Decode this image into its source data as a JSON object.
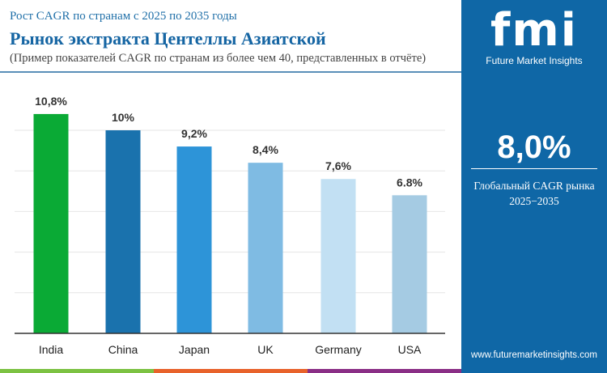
{
  "header": {
    "subtitle": "Рост CAGR по странам с 2025 по 2035 годы",
    "title": "Рынок экстракта Центеллы Азиатской",
    "note": "(Пример показателей CAGR по странам из более чем 40, представленных в отчёте)"
  },
  "sidebar": {
    "logo": "fmi",
    "brand": "Future Market Insights",
    "global_cagr": "8,0%",
    "global_label": "Глобальный CAGR рынка",
    "period": "2025−2035",
    "url": "www.futuremarketinsights.com"
  },
  "chart_data": {
    "type": "bar",
    "categories": [
      "India",
      "China",
      "Japan",
      "UK",
      "Germany",
      "USA"
    ],
    "values": [
      10.8,
      10,
      9.2,
      8.4,
      7.6,
      6.8
    ],
    "labels": [
      "10,8%",
      "10%",
      "9,2%",
      "8,4%",
      "7,6%",
      "6.8%"
    ],
    "colors": [
      "#0aaa35",
      "#1a72ad",
      "#2d94d8",
      "#7fbbe3",
      "#c2e0f3",
      "#a5cbe3"
    ],
    "ylim": [
      0,
      11
    ],
    "grid": true
  },
  "footer_colors": [
    "#7cc242",
    "#e8622a",
    "#8a2f86"
  ]
}
